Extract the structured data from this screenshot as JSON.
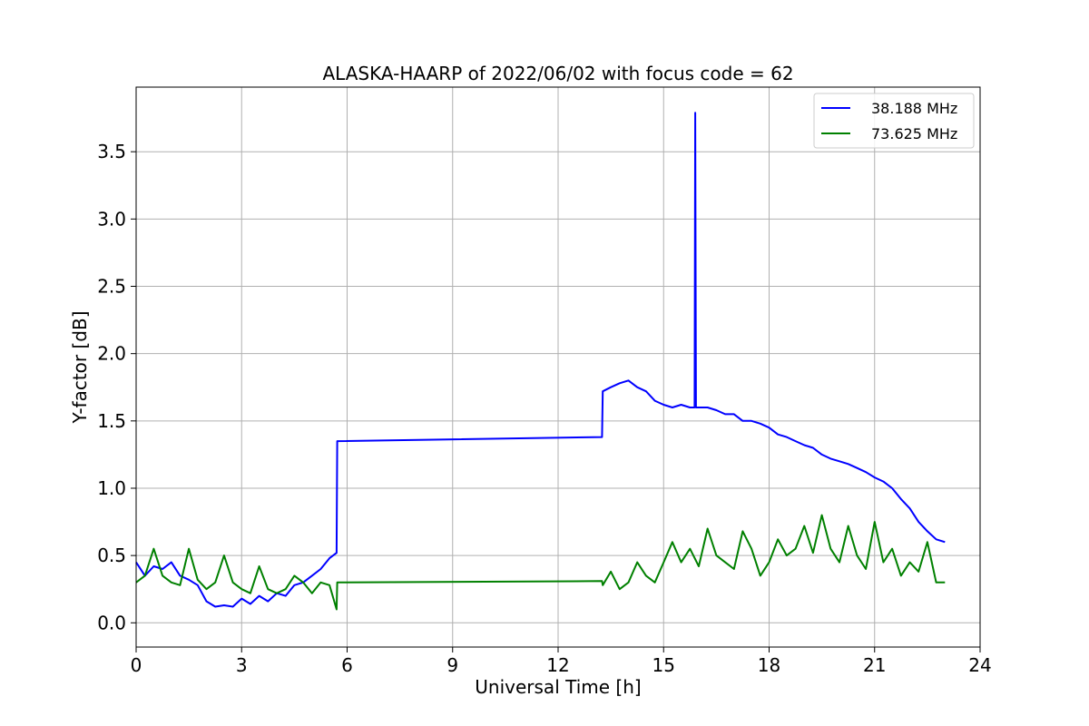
{
  "chart_data": {
    "type": "line",
    "title": "ALASKA-HAARP of 2022/06/02 with focus code = 62",
    "xlabel": "Universal Time [h]",
    "ylabel": "Y-factor [dB]",
    "xlim": [
      0,
      24
    ],
    "ylim": [
      -0.18,
      3.98
    ],
    "xticks": [
      "0",
      "3",
      "6",
      "9",
      "12",
      "15",
      "18",
      "21",
      "24"
    ],
    "yticks": [
      "0.0",
      "0.5",
      "1.0",
      "1.5",
      "2.0",
      "2.5",
      "3.0",
      "3.5"
    ],
    "grid": true,
    "legend_position": "top-right",
    "series": [
      {
        "name": "38.188 MHz",
        "color": "#0000ff",
        "x": [
          0.0,
          0.25,
          0.5,
          0.75,
          1.0,
          1.25,
          1.5,
          1.75,
          2.0,
          2.25,
          2.5,
          2.75,
          3.0,
          3.25,
          3.5,
          3.75,
          4.0,
          4.25,
          4.5,
          4.75,
          5.0,
          5.25,
          5.5,
          5.7,
          5.72,
          13.25,
          13.27,
          13.5,
          13.75,
          14.0,
          14.25,
          14.5,
          14.75,
          15.0,
          15.25,
          15.5,
          15.75,
          15.88,
          15.9,
          15.92,
          16.25,
          16.5,
          16.75,
          17.0,
          17.25,
          17.5,
          17.75,
          18.0,
          18.25,
          18.5,
          18.75,
          19.0,
          19.25,
          19.5,
          19.75,
          20.0,
          20.25,
          20.5,
          20.75,
          21.0,
          21.25,
          21.5,
          21.75,
          22.0,
          22.25,
          22.5,
          22.75,
          23.0
        ],
        "y": [
          0.45,
          0.35,
          0.42,
          0.4,
          0.45,
          0.35,
          0.32,
          0.28,
          0.16,
          0.12,
          0.13,
          0.12,
          0.18,
          0.14,
          0.2,
          0.16,
          0.22,
          0.2,
          0.28,
          0.3,
          0.35,
          0.4,
          0.48,
          0.52,
          1.35,
          1.38,
          1.72,
          1.75,
          1.78,
          1.8,
          1.75,
          1.72,
          1.65,
          1.62,
          1.6,
          1.62,
          1.6,
          1.6,
          3.79,
          1.6,
          1.6,
          1.58,
          1.55,
          1.55,
          1.5,
          1.5,
          1.48,
          1.45,
          1.4,
          1.38,
          1.35,
          1.32,
          1.3,
          1.25,
          1.22,
          1.2,
          1.18,
          1.15,
          1.12,
          1.08,
          1.05,
          1.0,
          0.92,
          0.85,
          0.75,
          0.68,
          0.62,
          0.6
        ]
      },
      {
        "name": "73.625 MHz",
        "color": "#008000",
        "x": [
          0.0,
          0.25,
          0.5,
          0.75,
          1.0,
          1.25,
          1.5,
          1.75,
          2.0,
          2.25,
          2.5,
          2.75,
          3.0,
          3.25,
          3.5,
          3.75,
          4.0,
          4.25,
          4.5,
          4.75,
          5.0,
          5.25,
          5.5,
          5.7,
          5.72,
          13.25,
          13.27,
          13.5,
          13.75,
          14.0,
          14.25,
          14.5,
          14.75,
          15.0,
          15.25,
          15.5,
          15.75,
          16.0,
          16.25,
          16.5,
          16.75,
          17.0,
          17.25,
          17.5,
          17.75,
          18.0,
          18.25,
          18.5,
          18.75,
          19.0,
          19.25,
          19.5,
          19.75,
          20.0,
          20.25,
          20.5,
          20.75,
          21.0,
          21.25,
          21.5,
          21.75,
          22.0,
          22.25,
          22.5,
          22.75,
          23.0
        ],
        "y": [
          0.3,
          0.35,
          0.55,
          0.35,
          0.3,
          0.28,
          0.55,
          0.32,
          0.25,
          0.3,
          0.5,
          0.3,
          0.25,
          0.22,
          0.42,
          0.25,
          0.22,
          0.25,
          0.35,
          0.3,
          0.22,
          0.3,
          0.28,
          0.1,
          0.3,
          0.31,
          0.28,
          0.38,
          0.25,
          0.3,
          0.45,
          0.35,
          0.3,
          0.45,
          0.6,
          0.45,
          0.55,
          0.42,
          0.7,
          0.5,
          0.45,
          0.4,
          0.68,
          0.55,
          0.35,
          0.45,
          0.62,
          0.5,
          0.55,
          0.72,
          0.52,
          0.8,
          0.55,
          0.45,
          0.72,
          0.5,
          0.4,
          0.75,
          0.45,
          0.55,
          0.35,
          0.45,
          0.38,
          0.6,
          0.3,
          0.3
        ]
      }
    ]
  }
}
